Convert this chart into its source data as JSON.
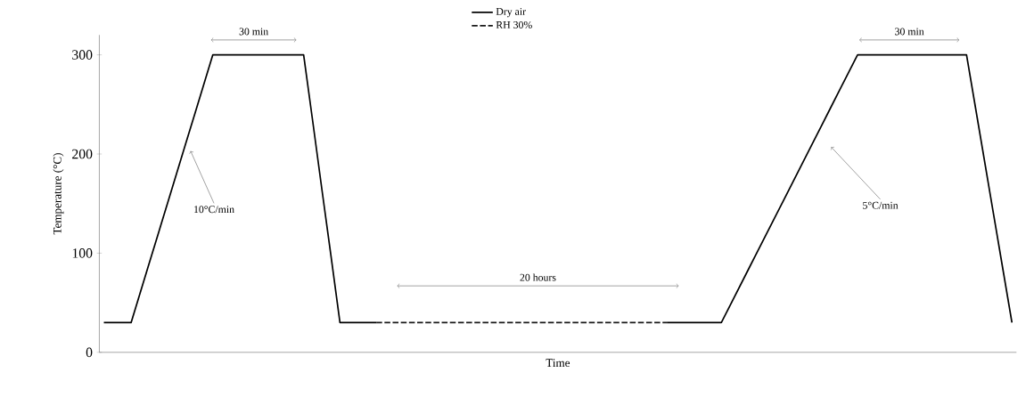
{
  "chart_data": {
    "type": "line",
    "xlabel": "Time",
    "ylabel": "Temperature (°C)",
    "categories": [
      null,
      null,
      null,
      null,
      null,
      null,
      null,
      null,
      null,
      null,
      null,
      null,
      null,
      null,
      null,
      null,
      null,
      null,
      null,
      null,
      null,
      null,
      null,
      null,
      null,
      null,
      null,
      null,
      null,
      null,
      null,
      null,
      null,
      null,
      null,
      null,
      null,
      null,
      null,
      null,
      null,
      null,
      null,
      null,
      null,
      null,
      null,
      null,
      null,
      null,
      null,
      null,
      null,
      null,
      null,
      null,
      null,
      null,
      null,
      null,
      null,
      null,
      null,
      null,
      null,
      null,
      null,
      null,
      null,
      null,
      null,
      null,
      null,
      null,
      null,
      null,
      null,
      null,
      null,
      null,
      null,
      null,
      null,
      null,
      null,
      null,
      null,
      null,
      null,
      null,
      null,
      null,
      null,
      null,
      null,
      null,
      null,
      null,
      null,
      null,
      null
    ],
    "ylim": [
      0,
      320
    ],
    "yticks": [
      0,
      100,
      200,
      300
    ],
    "legend": "top",
    "grid": false,
    "series": [
      {
        "name": "Dry air",
        "color": "#000000",
        "line_style": "solid",
        "values": [
          30,
          30,
          30,
          30,
          60,
          90,
          120,
          150,
          180,
          210,
          240,
          270,
          300,
          300,
          300,
          300,
          300,
          300,
          300,
          300,
          300,
          300,
          300,
          233,
          165,
          98,
          30,
          30,
          30,
          30,
          30,
          null,
          null,
          null,
          null,
          null,
          null,
          null,
          null,
          null,
          null,
          null,
          null,
          null,
          null,
          null,
          null,
          null,
          null,
          null,
          null,
          null,
          null,
          null,
          null,
          null,
          null,
          null,
          null,
          null,
          null,
          null,
          30,
          30,
          30,
          30,
          30,
          30,
          30,
          48,
          66,
          84,
          102,
          120,
          138,
          156,
          174,
          192,
          210,
          228,
          246,
          264,
          282,
          300,
          300,
          300,
          300,
          300,
          300,
          300,
          300,
          300,
          300,
          300,
          300,
          300,
          246,
          192,
          138,
          84,
          30
        ]
      },
      {
        "name": "RH 30%",
        "color": "#1a1a1a",
        "line_style": "dashed",
        "values": [
          null,
          null,
          null,
          null,
          null,
          null,
          null,
          null,
          null,
          null,
          null,
          null,
          null,
          null,
          null,
          null,
          null,
          null,
          null,
          null,
          null,
          null,
          null,
          null,
          null,
          null,
          null,
          null,
          null,
          null,
          30,
          30,
          30,
          30,
          30,
          30,
          30,
          30,
          30,
          30,
          30,
          30,
          30,
          30,
          30,
          30,
          30,
          30,
          30,
          30,
          30,
          30,
          30,
          30,
          30,
          30,
          30,
          30,
          30,
          30,
          30,
          30,
          30,
          null,
          null,
          null,
          null,
          null,
          null,
          null,
          null,
          null,
          null,
          null,
          null,
          null,
          null,
          null,
          null,
          null,
          null,
          null,
          null,
          null,
          null,
          null,
          null,
          null,
          null,
          null,
          null,
          null,
          null,
          null,
          null,
          null,
          null,
          null,
          null,
          null,
          null
        ]
      }
    ],
    "annotations": [
      "30 min",
      "30 min",
      "10°C/min",
      "5°C/min",
      "20 hours"
    ]
  }
}
